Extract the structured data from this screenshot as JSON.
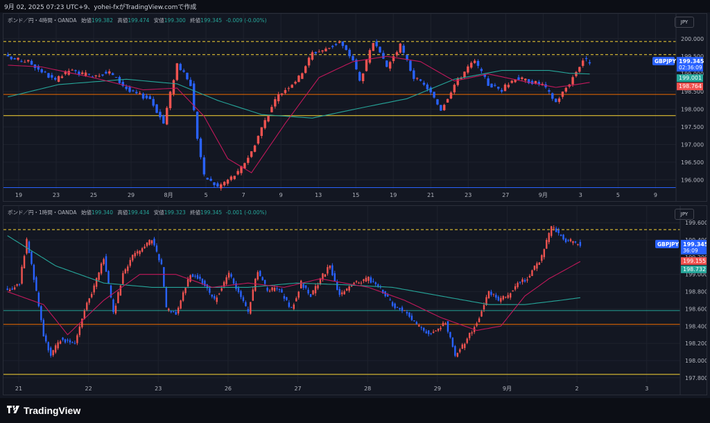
{
  "header": {
    "title": "9月 02, 2025 07:23 UTC+9、yohei-fxがTradingView.comで作成"
  },
  "brand": {
    "name": "TradingView"
  },
  "colors": {
    "bull": "#ef5350",
    "bear": "#2962ff",
    "ma_fast": "#c2185b",
    "ma_slow": "#26a69a",
    "grid": "#1e222d",
    "level_orange": "#ef6c00",
    "level_yellow": "#fdd835",
    "level_blue": "#2962ff"
  },
  "chart_data": [
    {
      "type": "candlestick",
      "title": "ポンド／円・4時間・OANDA",
      "ohlc": {
        "open_label": "始値",
        "open": "199.382",
        "high_label": "高値",
        "high": "199.474",
        "low_label": "安値",
        "low": "199.300",
        "close_label": "終値",
        "close": "199.345",
        "change": "-0.009 (-0.00%)"
      },
      "currency": "JPY",
      "x_ticks": [
        "19",
        "23",
        "25",
        "29",
        "8月",
        "5",
        "7",
        "9",
        "13",
        "15",
        "19",
        "21",
        "23",
        "27",
        "9月",
        "3",
        "5",
        "9"
      ],
      "y_ticks": [
        "200.000",
        "199.500",
        "199.000",
        "198.500",
        "198.000",
        "197.500",
        "197.000",
        "196.500",
        "196.000"
      ],
      "ylim": [
        195.75,
        200.35
      ],
      "symbol_label": "GBPJPY",
      "last_price": "199.345",
      "countdown": "02:36:09",
      "ma_labels": [
        {
          "value": "199.001",
          "color": "#26a69a"
        },
        {
          "value": "198.764",
          "color": "#ef5350"
        }
      ],
      "levels": [
        {
          "value": 199.92,
          "style": "dashed",
          "color": "#fdd835"
        },
        {
          "value": 199.55,
          "style": "dashed",
          "color": "#fdd835"
        },
        {
          "value": 198.42,
          "style": "solid",
          "color": "#ef6c00"
        },
        {
          "value": 197.82,
          "style": "solid",
          "color": "#fdd835"
        },
        {
          "value": 195.78,
          "style": "solid",
          "color": "#2962ff"
        }
      ],
      "anchors": [
        [
          0,
          199.45
        ],
        [
          6,
          199.35
        ],
        [
          14,
          198.8
        ],
        [
          18,
          199.1
        ],
        [
          24,
          198.95
        ],
        [
          30,
          199.05
        ],
        [
          36,
          198.5
        ],
        [
          42,
          198.3
        ],
        [
          46,
          197.6
        ],
        [
          50,
          199.3
        ],
        [
          54,
          198.7
        ],
        [
          56,
          197.2
        ],
        [
          58,
          196.1
        ],
        [
          62,
          195.8
        ],
        [
          68,
          196.2
        ],
        [
          72,
          196.8
        ],
        [
          76,
          197.7
        ],
        [
          80,
          198.4
        ],
        [
          86,
          198.9
        ],
        [
          90,
          199.6
        ],
        [
          94,
          199.7
        ],
        [
          98,
          199.9
        ],
        [
          102,
          199.4
        ],
        [
          104,
          198.8
        ],
        [
          108,
          199.9
        ],
        [
          112,
          199.2
        ],
        [
          116,
          199.8
        ],
        [
          120,
          198.9
        ],
        [
          124,
          198.6
        ],
        [
          128,
          198.0
        ],
        [
          132,
          198.7
        ],
        [
          136,
          199.2
        ],
        [
          138,
          199.35
        ],
        [
          142,
          198.7
        ],
        [
          146,
          198.55
        ],
        [
          150,
          198.9
        ],
        [
          154,
          198.8
        ],
        [
          158,
          198.7
        ],
        [
          162,
          198.2
        ],
        [
          166,
          198.75
        ],
        [
          170,
          199.4
        ],
        [
          172,
          199.35
        ]
      ],
      "ma_fast": [
        [
          0,
          199.25
        ],
        [
          10,
          199.2
        ],
        [
          25,
          198.9
        ],
        [
          40,
          198.55
        ],
        [
          50,
          198.6
        ],
        [
          58,
          197.8
        ],
        [
          65,
          196.6
        ],
        [
          72,
          196.2
        ],
        [
          82,
          197.6
        ],
        [
          92,
          198.9
        ],
        [
          102,
          199.35
        ],
        [
          112,
          199.5
        ],
        [
          122,
          199.35
        ],
        [
          132,
          198.8
        ],
        [
          142,
          199.0
        ],
        [
          152,
          198.8
        ],
        [
          162,
          198.62
        ],
        [
          168,
          198.7
        ],
        [
          172,
          198.76
        ]
      ],
      "ma_slow": [
        [
          0,
          198.35
        ],
        [
          15,
          198.7
        ],
        [
          35,
          198.85
        ],
        [
          50,
          198.72
        ],
        [
          62,
          198.25
        ],
        [
          75,
          197.85
        ],
        [
          90,
          197.75
        ],
        [
          105,
          198.05
        ],
        [
          118,
          198.3
        ],
        [
          132,
          198.85
        ],
        [
          146,
          199.1
        ],
        [
          160,
          199.1
        ],
        [
          166,
          199.02
        ],
        [
          172,
          199.0
        ]
      ]
    },
    {
      "type": "candlestick",
      "title": "ポンド／円・1時間・OANDA",
      "ohlc": {
        "open_label": "始値",
        "open": "199.340",
        "high_label": "高値",
        "high": "199.434",
        "low_label": "安値",
        "low": "199.323",
        "close_label": "終値",
        "close": "199.345",
        "change": "-0.001 (-0.00%)"
      },
      "currency": "JPY",
      "x_ticks": [
        "21",
        "22",
        "23",
        "26",
        "27",
        "28",
        "29",
        "9月",
        "2",
        "3"
      ],
      "y_ticks": [
        "199.600",
        "199.400",
        "199.200",
        "199.000",
        "198.800",
        "198.600",
        "198.400",
        "198.200",
        "198.000",
        "197.800"
      ],
      "ylim": [
        197.75,
        199.65
      ],
      "symbol_label": "GBPJPY",
      "last_price": "199.345",
      "countdown": "36:09",
      "ma_labels": [
        {
          "value": "199.155",
          "color": "#ef5350"
        },
        {
          "value": "198.732",
          "color": "#26a69a"
        }
      ],
      "levels": [
        {
          "value": 199.52,
          "style": "dashed",
          "color": "#fdd835"
        },
        {
          "value": 198.58,
          "style": "solid",
          "color": "#26a69a"
        },
        {
          "value": 198.42,
          "style": "solid",
          "color": "#ef6c00"
        },
        {
          "value": 197.84,
          "style": "solid",
          "color": "#fdd835"
        }
      ],
      "anchors": [
        [
          0,
          198.8
        ],
        [
          5,
          198.9
        ],
        [
          8,
          199.4
        ],
        [
          12,
          198.8
        ],
        [
          15,
          198.3
        ],
        [
          18,
          198.05
        ],
        [
          22,
          198.25
        ],
        [
          28,
          198.2
        ],
        [
          32,
          198.6
        ],
        [
          36,
          198.85
        ],
        [
          40,
          199.2
        ],
        [
          44,
          198.55
        ],
        [
          48,
          199.0
        ],
        [
          52,
          199.2
        ],
        [
          56,
          199.3
        ],
        [
          60,
          199.4
        ],
        [
          64,
          199.1
        ],
        [
          66,
          198.6
        ],
        [
          70,
          198.55
        ],
        [
          76,
          199.0
        ],
        [
          80,
          198.95
        ],
        [
          86,
          198.7
        ],
        [
          92,
          199.0
        ],
        [
          96,
          198.8
        ],
        [
          100,
          198.55
        ],
        [
          104,
          199.05
        ],
        [
          108,
          198.8
        ],
        [
          112,
          198.85
        ],
        [
          118,
          198.6
        ],
        [
          122,
          198.9
        ],
        [
          126,
          198.75
        ],
        [
          130,
          198.95
        ],
        [
          134,
          199.1
        ],
        [
          138,
          198.75
        ],
        [
          144,
          198.9
        ],
        [
          150,
          198.95
        ],
        [
          156,
          198.8
        ],
        [
          160,
          198.65
        ],
        [
          166,
          198.55
        ],
        [
          170,
          198.4
        ],
        [
          176,
          198.3
        ],
        [
          182,
          198.45
        ],
        [
          186,
          198.05
        ],
        [
          190,
          198.2
        ],
        [
          196,
          198.5
        ],
        [
          200,
          198.8
        ],
        [
          204,
          198.7
        ],
        [
          208,
          198.75
        ],
        [
          212,
          198.9
        ],
        [
          216,
          198.95
        ],
        [
          222,
          199.2
        ],
        [
          226,
          199.55
        ],
        [
          232,
          199.4
        ],
        [
          238,
          199.35
        ]
      ],
      "ma_fast": [
        [
          0,
          198.8
        ],
        [
          15,
          198.65
        ],
        [
          25,
          198.3
        ],
        [
          40,
          198.7
        ],
        [
          55,
          199.0
        ],
        [
          70,
          199.0
        ],
        [
          85,
          198.85
        ],
        [
          100,
          198.9
        ],
        [
          115,
          198.85
        ],
        [
          130,
          198.95
        ],
        [
          150,
          198.85
        ],
        [
          165,
          198.7
        ],
        [
          180,
          198.5
        ],
        [
          195,
          198.35
        ],
        [
          205,
          198.4
        ],
        [
          215,
          198.75
        ],
        [
          225,
          198.95
        ],
        [
          238,
          199.15
        ]
      ],
      "ma_slow": [
        [
          0,
          199.45
        ],
        [
          20,
          199.1
        ],
        [
          40,
          198.9
        ],
        [
          60,
          198.85
        ],
        [
          80,
          198.85
        ],
        [
          100,
          198.85
        ],
        [
          120,
          198.9
        ],
        [
          140,
          198.88
        ],
        [
          160,
          198.85
        ],
        [
          180,
          198.75
        ],
        [
          200,
          198.65
        ],
        [
          215,
          198.65
        ],
        [
          230,
          198.7
        ],
        [
          238,
          198.73
        ]
      ]
    }
  ]
}
